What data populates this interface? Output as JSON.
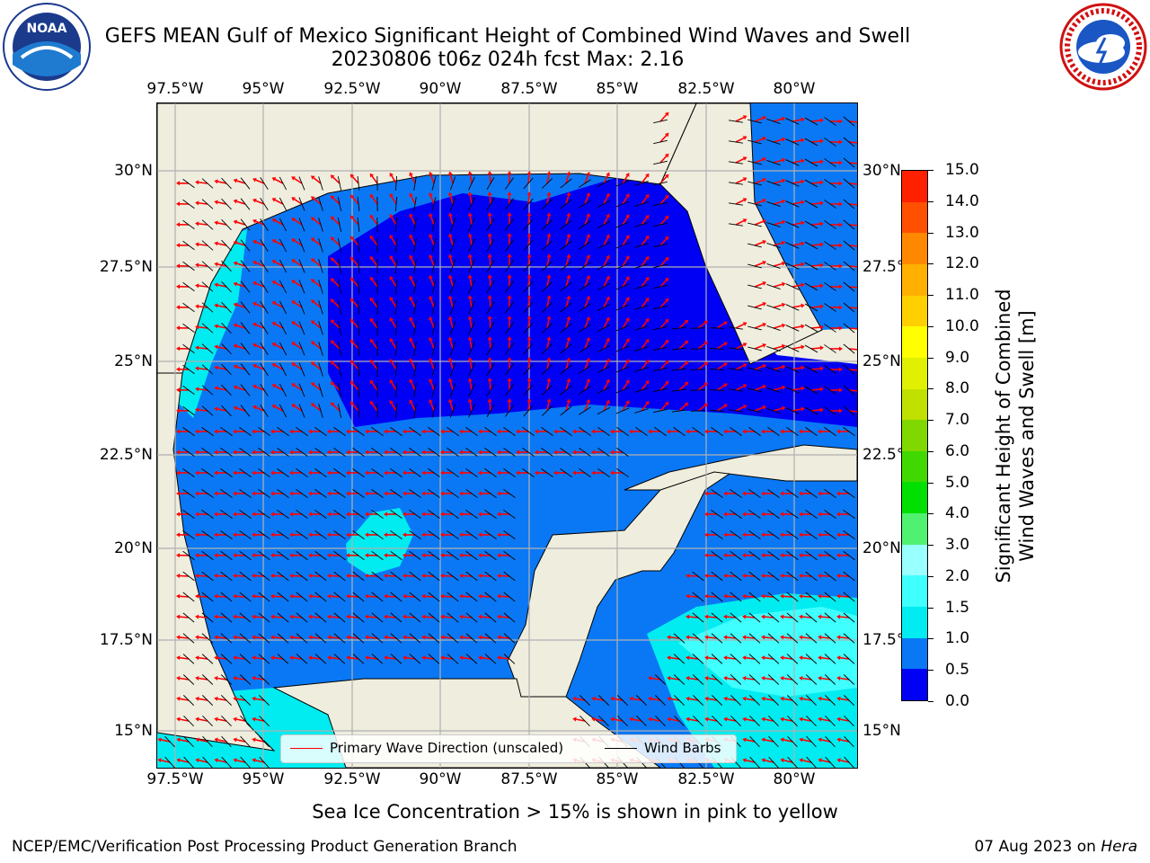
{
  "title": {
    "line1": "GEFS MEAN Gulf of Mexico Significant Height of Combined Wind Waves and Swell",
    "line2": "20230806 t06z 024h fcst   Max: 2.16"
  },
  "logos": {
    "left": "noaa-logo",
    "left_text": "NOAA",
    "right": "nws-logo"
  },
  "axes": {
    "lon_ticks": [
      "97.5°W",
      "95°W",
      "92.5°W",
      "90°W",
      "87.5°W",
      "85°W",
      "82.5°W",
      "80°W"
    ],
    "lat_ticks": [
      "30°N",
      "27.5°N",
      "25°N",
      "22.5°N",
      "20°N",
      "17.5°N",
      "15°N"
    ]
  },
  "legend": {
    "wave_direction": "Primary Wave Direction (unscaled)",
    "wind_barbs": "Wind Barbs"
  },
  "colorbar": {
    "labels": [
      "0.0",
      "0.5",
      "1.0",
      "1.5",
      "2.0",
      "3.0",
      "4.0",
      "5.0",
      "6.0",
      "7.0",
      "8.0",
      "9.0",
      "10.0",
      "11.0",
      "12.0",
      "13.0",
      "14.0",
      "15.0"
    ],
    "colors": [
      "#0000f5",
      "#0a78f5",
      "#00ecf0",
      "#40ffff",
      "#99ffff",
      "#50f070",
      "#00e000",
      "#40d800",
      "#80d800",
      "#c0e000",
      "#e0f000",
      "#ffff00",
      "#ffd000",
      "#ffb000",
      "#ff8800",
      "#ff5000",
      "#ff2000"
    ],
    "title_line1": "Significant Height of Combined",
    "title_line2": "Wind Waves and Swell [m]"
  },
  "map_colors": {
    "land": "#efedde",
    "lt05": "#0000f5",
    "b05_10": "#0a78f5",
    "b10_15": "#00ecf0",
    "b15_20": "#40ffff",
    "grid": "#b0b0b0",
    "arrow": "#ff0000",
    "barb": "#000000"
  },
  "notes": {
    "ice": "Sea Ice Concentration > 15% is shown in pink to yellow",
    "footer_left": "NCEP/EMC/Verification Post Processing Product Generation Branch",
    "footer_date": "07 Aug 2023 on",
    "footer_host": "Hera"
  }
}
